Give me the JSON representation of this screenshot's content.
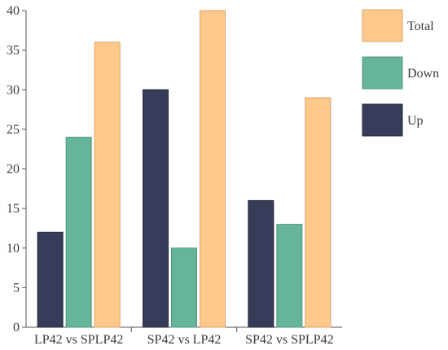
{
  "chart_data": {
    "type": "bar",
    "categories": [
      "LP42 vs SPLP42",
      "SP42 vs LP42",
      "SP42 vs SPLP42"
    ],
    "series": [
      {
        "name": "Up",
        "values": [
          12,
          30,
          16
        ],
        "color": "#373c5a",
        "stroke": "#25283d"
      },
      {
        "name": "Down",
        "values": [
          24,
          10,
          13
        ],
        "color": "#66b49a",
        "stroke": "#4f9880"
      },
      {
        "name": "Total",
        "values": [
          36,
          40,
          29
        ],
        "color": "#fec98a",
        "stroke": "#d9a468"
      }
    ],
    "ylim": [
      0,
      40
    ],
    "yticks": [
      0,
      5,
      10,
      15,
      20,
      25,
      30,
      35,
      40
    ],
    "legend": {
      "placement": "right",
      "order": [
        "Total",
        "Down",
        "Up"
      ]
    },
    "grid": false
  }
}
